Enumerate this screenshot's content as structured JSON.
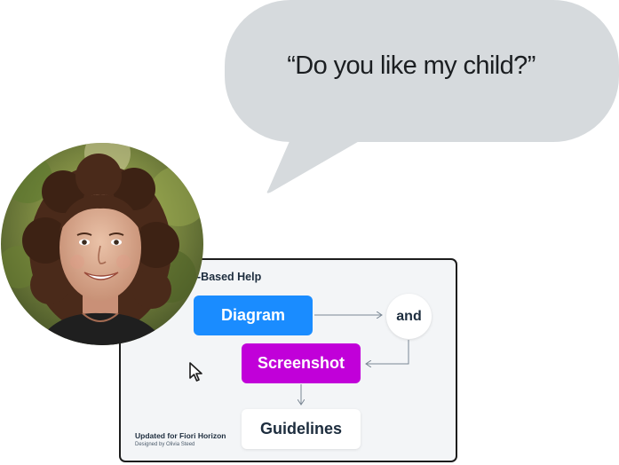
{
  "speech_bubble": {
    "quote": "“Do you like my child?”"
  },
  "card": {
    "title": "-Based Help",
    "nodes": {
      "diagram": "Diagram",
      "and": "and",
      "screenshot": "Screenshot",
      "guidelines": "Guidelines"
    },
    "footer": {
      "updated": "Updated for Fiori Horizon",
      "designed_by": "Designed by Olivia Steed"
    }
  },
  "colors": {
    "bubble": "#d6dadd",
    "diagram": "#1a8cff",
    "screenshot": "#c100d9",
    "card_bg": "#f3f5f7",
    "text_dark": "#1d2d3e"
  },
  "icons": {
    "cursor": "mouse-pointer-icon",
    "avatar": "person-photo"
  }
}
